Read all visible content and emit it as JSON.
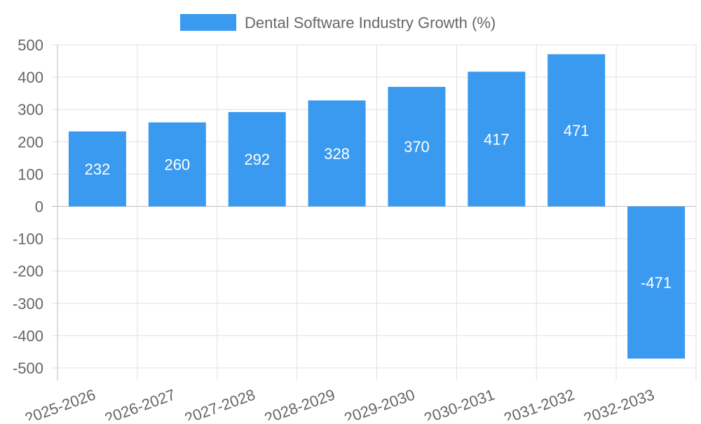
{
  "chart_data": {
    "type": "bar",
    "categories": [
      "2025-2026",
      "2026-2027",
      "2027-2028",
      "2028-2029",
      "2029-2030",
      "2030-2031",
      "2031-2032",
      "2032-2033"
    ],
    "series": [
      {
        "name": "Dental Software Industry Growth (%)",
        "values": [
          232,
          260,
          292,
          328,
          370,
          417,
          471,
          -471
        ],
        "color": "#3a9af0"
      }
    ],
    "ylim": [
      -500,
      500
    ],
    "yticks": [
      500,
      400,
      300,
      200,
      100,
      0,
      -100,
      -200,
      -300,
      -400,
      -500
    ],
    "xlabel": "",
    "ylabel": "",
    "grid": true,
    "legend_position": "top-center",
    "data_labels": true
  }
}
